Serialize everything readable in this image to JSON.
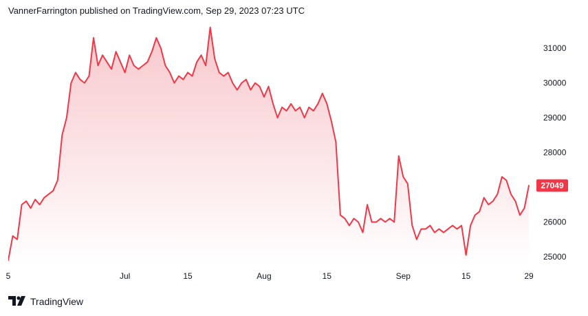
{
  "header": {
    "caption": "VannerFarrington published on TradingView.com, Sep 29, 2023 07:23 UTC"
  },
  "footer": {
    "brand": "TradingView"
  },
  "colors": {
    "line": "#f23645",
    "area_top": "#f7c5ca",
    "area_bottom": "#ffffff",
    "price_label_bg": "#f23645",
    "text": "#131722",
    "grid": "#ebedf2"
  },
  "chart_data": {
    "type": "area",
    "x_labels": [
      "5",
      "Jul",
      "15",
      "Aug",
      "15",
      "Sep",
      "15",
      "29"
    ],
    "x_label_dates": [
      "2023-06-05",
      "2023-07-01",
      "2023-07-15",
      "2023-08-01",
      "2023-08-15",
      "2023-09-01",
      "2023-09-15",
      "2023-09-29"
    ],
    "y_ticks": [
      25000,
      26000,
      27000,
      28000,
      29000,
      30000,
      31000
    ],
    "y_tick_labels": [
      "25000",
      "26000",
      "27000",
      "28000",
      "29000",
      "30000",
      "31000"
    ],
    "ylim": [
      24600,
      31800
    ],
    "last_price": 27049,
    "last_price_label": "27049",
    "series": [
      {
        "points": [
          [
            "2023-06-05",
            24900
          ],
          [
            "2023-06-06",
            25600
          ],
          [
            "2023-06-07",
            25500
          ],
          [
            "2023-06-08",
            26500
          ],
          [
            "2023-06-09",
            26600
          ],
          [
            "2023-06-10",
            26400
          ],
          [
            "2023-06-11",
            26650
          ],
          [
            "2023-06-12",
            26500
          ],
          [
            "2023-06-13",
            26700
          ],
          [
            "2023-06-14",
            26800
          ],
          [
            "2023-06-15",
            26900
          ],
          [
            "2023-06-16",
            27200
          ],
          [
            "2023-06-17",
            28500
          ],
          [
            "2023-06-18",
            29000
          ],
          [
            "2023-06-19",
            30000
          ],
          [
            "2023-06-20",
            30300
          ],
          [
            "2023-06-21",
            30100
          ],
          [
            "2023-06-22",
            30000
          ],
          [
            "2023-06-23",
            30200
          ],
          [
            "2023-06-24",
            31300
          ],
          [
            "2023-06-25",
            30500
          ],
          [
            "2023-06-26",
            30800
          ],
          [
            "2023-06-27",
            30600
          ],
          [
            "2023-06-28",
            30400
          ],
          [
            "2023-06-29",
            30900
          ],
          [
            "2023-06-30",
            30600
          ],
          [
            "2023-07-01",
            30300
          ],
          [
            "2023-07-02",
            30800
          ],
          [
            "2023-07-03",
            30500
          ],
          [
            "2023-07-04",
            30400
          ],
          [
            "2023-07-05",
            30500
          ],
          [
            "2023-07-06",
            30600
          ],
          [
            "2023-07-07",
            30900
          ],
          [
            "2023-07-08",
            31300
          ],
          [
            "2023-07-09",
            31000
          ],
          [
            "2023-07-10",
            30500
          ],
          [
            "2023-07-11",
            30300
          ],
          [
            "2023-07-12",
            30000
          ],
          [
            "2023-07-13",
            30200
          ],
          [
            "2023-07-14",
            30100
          ],
          [
            "2023-07-15",
            30300
          ],
          [
            "2023-07-16",
            30200
          ],
          [
            "2023-07-17",
            30600
          ],
          [
            "2023-07-18",
            30800
          ],
          [
            "2023-07-19",
            30500
          ],
          [
            "2023-07-20",
            31600
          ],
          [
            "2023-07-21",
            30700
          ],
          [
            "2023-07-22",
            30300
          ],
          [
            "2023-07-23",
            30200
          ],
          [
            "2023-07-24",
            30300
          ],
          [
            "2023-07-25",
            30000
          ],
          [
            "2023-07-26",
            29800
          ],
          [
            "2023-07-27",
            30000
          ],
          [
            "2023-07-28",
            30100
          ],
          [
            "2023-07-29",
            29800
          ],
          [
            "2023-07-30",
            30000
          ],
          [
            "2023-07-31",
            29900
          ],
          [
            "2023-08-01",
            29600
          ],
          [
            "2023-08-02",
            29900
          ],
          [
            "2023-08-03",
            29400
          ],
          [
            "2023-08-04",
            29000
          ],
          [
            "2023-08-05",
            29300
          ],
          [
            "2023-08-06",
            29200
          ],
          [
            "2023-08-07",
            29400
          ],
          [
            "2023-08-08",
            29200
          ],
          [
            "2023-08-09",
            29300
          ],
          [
            "2023-08-10",
            29000
          ],
          [
            "2023-08-11",
            29300
          ],
          [
            "2023-08-12",
            29200
          ],
          [
            "2023-08-13",
            29400
          ],
          [
            "2023-08-14",
            29700
          ],
          [
            "2023-08-15",
            29400
          ],
          [
            "2023-08-16",
            28900
          ],
          [
            "2023-08-17",
            28300
          ],
          [
            "2023-08-18",
            26200
          ],
          [
            "2023-08-19",
            26100
          ],
          [
            "2023-08-20",
            25900
          ],
          [
            "2023-08-21",
            26100
          ],
          [
            "2023-08-22",
            26000
          ],
          [
            "2023-08-23",
            25700
          ],
          [
            "2023-08-24",
            26500
          ],
          [
            "2023-08-25",
            26000
          ],
          [
            "2023-08-26",
            26000
          ],
          [
            "2023-08-27",
            26100
          ],
          [
            "2023-08-28",
            26000
          ],
          [
            "2023-08-29",
            26100
          ],
          [
            "2023-08-30",
            26000
          ],
          [
            "2023-08-31",
            27900
          ],
          [
            "2023-09-01",
            27300
          ],
          [
            "2023-09-02",
            27100
          ],
          [
            "2023-09-03",
            25900
          ],
          [
            "2023-09-04",
            25500
          ],
          [
            "2023-09-05",
            25800
          ],
          [
            "2023-09-06",
            25800
          ],
          [
            "2023-09-07",
            25900
          ],
          [
            "2023-09-08",
            25700
          ],
          [
            "2023-09-09",
            25800
          ],
          [
            "2023-09-10",
            25700
          ],
          [
            "2023-09-11",
            25800
          ],
          [
            "2023-09-12",
            25900
          ],
          [
            "2023-09-13",
            25800
          ],
          [
            "2023-09-14",
            25900
          ],
          [
            "2023-09-15",
            25050
          ],
          [
            "2023-09-16",
            25900
          ],
          [
            "2023-09-17",
            26200
          ],
          [
            "2023-09-18",
            26300
          ],
          [
            "2023-09-19",
            26700
          ],
          [
            "2023-09-20",
            26500
          ],
          [
            "2023-09-21",
            26600
          ],
          [
            "2023-09-22",
            26800
          ],
          [
            "2023-09-23",
            27300
          ],
          [
            "2023-09-24",
            27200
          ],
          [
            "2023-09-25",
            26800
          ],
          [
            "2023-09-26",
            26600
          ],
          [
            "2023-09-27",
            26200
          ],
          [
            "2023-09-28",
            26400
          ],
          [
            "2023-09-29",
            27049
          ]
        ]
      }
    ],
    "grid": false
  }
}
